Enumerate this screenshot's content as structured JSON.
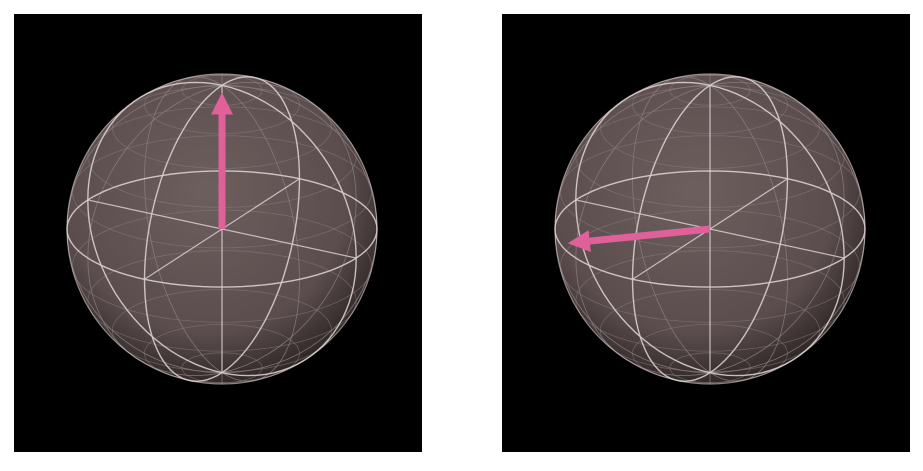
{
  "figure": {
    "panels": [
      {
        "id": "left",
        "state_vector": {
          "azimuth_deg": 0,
          "polar_deg": 0,
          "direction": "up"
        }
      },
      {
        "id": "right",
        "state_vector": {
          "azimuth_deg": 225,
          "polar_deg": 90,
          "direction": "down-left"
        }
      }
    ],
    "colors": {
      "background": "#000000",
      "sphere_fill": "#5b4d4d",
      "sphere_edge": "#2a2222",
      "grid_major": "#d9cfcf",
      "grid_minor": "#8c7f7f",
      "arrow": "#e0609a"
    }
  }
}
